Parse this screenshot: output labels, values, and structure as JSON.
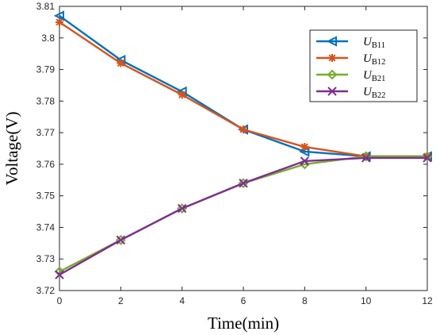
{
  "chart_data": {
    "type": "line",
    "xlabel": "Time(min)",
    "ylabel": "Voltage(V)",
    "xlim": [
      0,
      12
    ],
    "ylim": [
      3.72,
      3.81
    ],
    "x_ticks": [
      "0",
      "2",
      "4",
      "6",
      "8",
      "10",
      "12"
    ],
    "y_ticks": [
      "3.72",
      "3.73",
      "3.74",
      "3.75",
      "3.76",
      "3.77",
      "3.78",
      "3.79",
      "3.8",
      "3.81"
    ],
    "grid": false,
    "legend_position": "top-right",
    "x": [
      0,
      2,
      4,
      6,
      8,
      10,
      12
    ],
    "series": [
      {
        "name": "U_B11",
        "label_main": "U",
        "label_sub": "B11",
        "color": "#0072BD",
        "marker": "triangle-left",
        "values": [
          3.807,
          3.793,
          3.783,
          3.771,
          3.764,
          3.7625,
          3.7625
        ]
      },
      {
        "name": "U_B12",
        "label_main": "U",
        "label_sub": "B12",
        "color": "#D95319",
        "marker": "asterisk",
        "values": [
          3.805,
          3.792,
          3.782,
          3.771,
          3.7655,
          3.7625,
          3.7625
        ]
      },
      {
        "name": "U_B21",
        "label_main": "U",
        "label_sub": "B21",
        "color": "#77AC30",
        "marker": "diamond",
        "values": [
          3.726,
          3.736,
          3.746,
          3.754,
          3.76,
          3.7625,
          3.7625
        ]
      },
      {
        "name": "U_B22",
        "label_main": "U",
        "label_sub": "B22",
        "color": "#7E2F8E",
        "marker": "x",
        "values": [
          3.725,
          3.736,
          3.746,
          3.754,
          3.761,
          3.762,
          3.762
        ]
      }
    ]
  }
}
